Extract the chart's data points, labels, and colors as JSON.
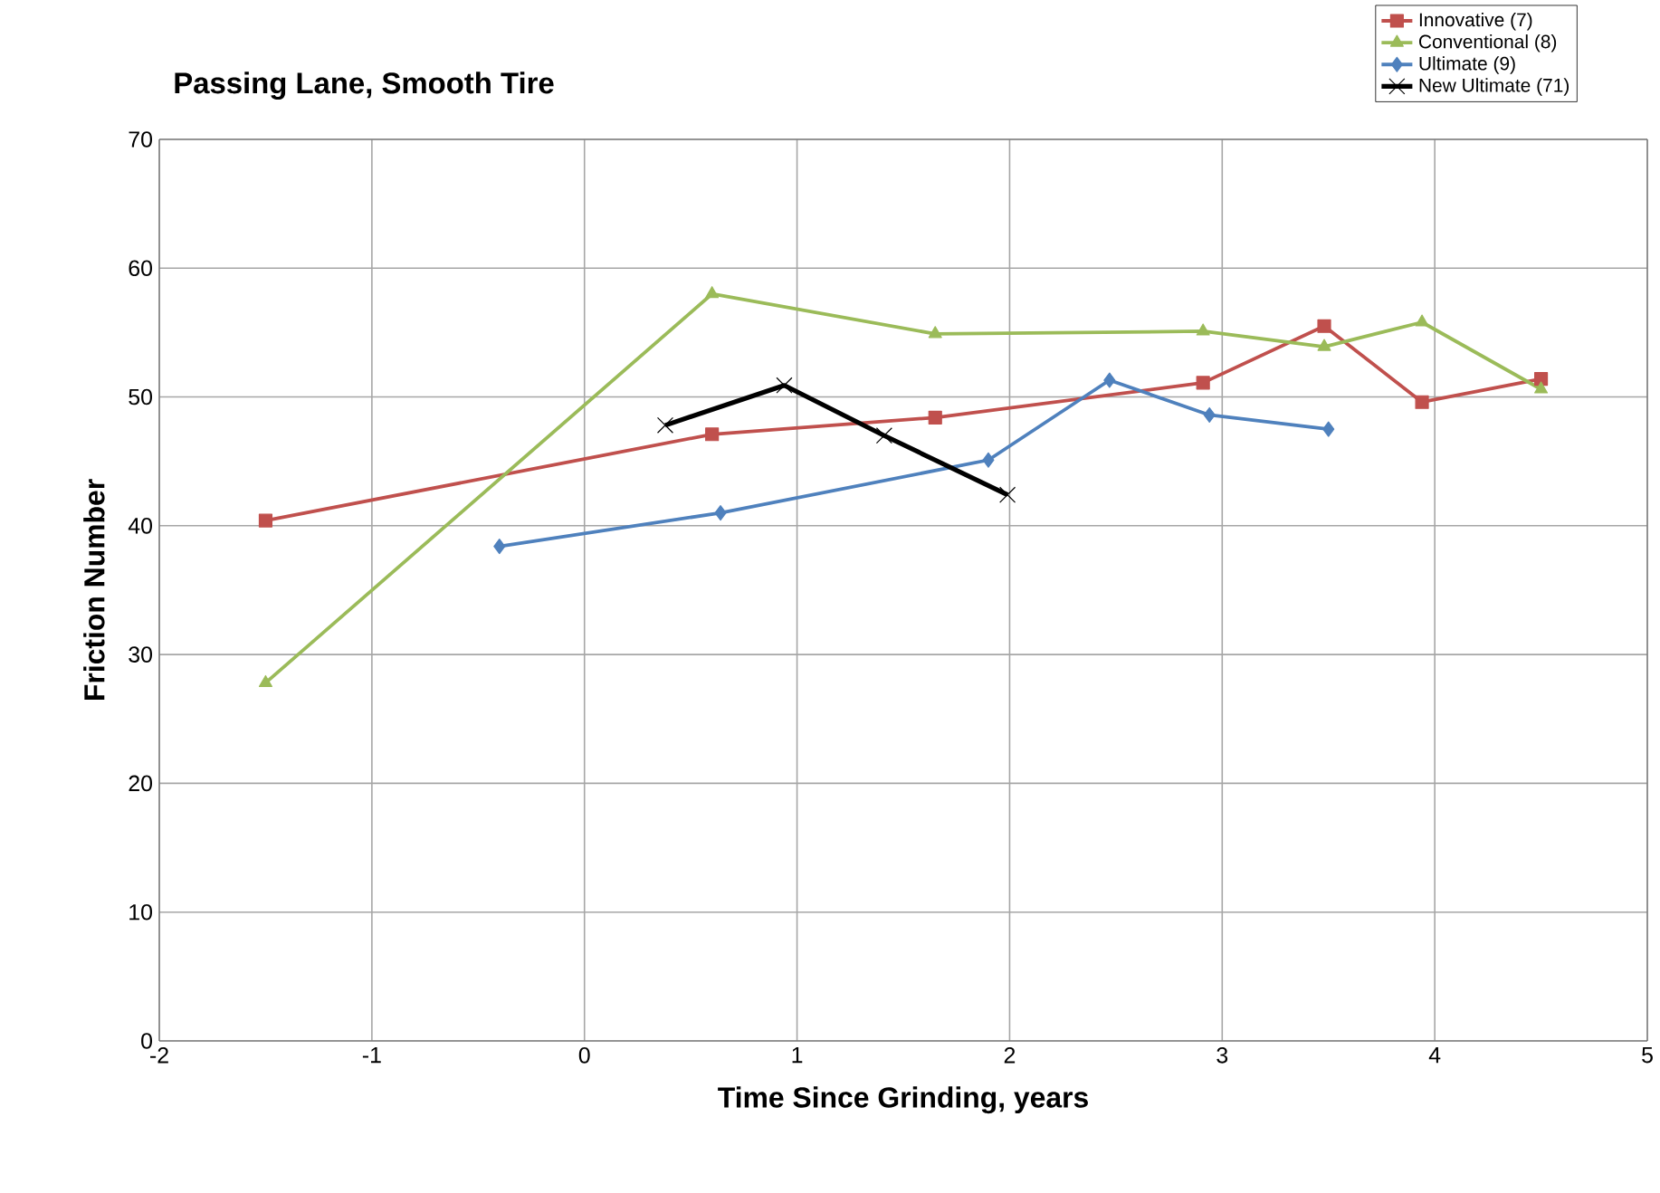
{
  "chart_data": {
    "type": "line",
    "title": "Passing Lane, Smooth Tire",
    "xlabel": "Time Since Grinding, years",
    "ylabel": "Friction Number",
    "xlim": [
      -2,
      5
    ],
    "xticks": [
      -2,
      -1,
      0,
      1,
      2,
      3,
      4,
      5
    ],
    "ylim": [
      0,
      70
    ],
    "yticks": [
      0,
      10,
      20,
      30,
      40,
      50,
      60,
      70
    ],
    "grid": true,
    "legend": "top right",
    "line_style": "solid",
    "series": [
      {
        "name": "Innovative (7)",
        "color": "#c0504d",
        "marker": "square",
        "x": [
          -1.5,
          0.6,
          1.65,
          2.91,
          3.48,
          3.94,
          4.5
        ],
        "values": [
          40.4,
          47.1,
          48.4,
          51.1,
          55.5,
          49.6,
          51.4
        ]
      },
      {
        "name": "Conventional (8)",
        "color": "#9bbb59",
        "marker": "triangle",
        "x": [
          -1.5,
          0.6,
          1.65,
          2.91,
          3.48,
          3.94,
          4.5
        ],
        "values": [
          27.8,
          58.0,
          54.9,
          55.1,
          53.9,
          55.8,
          50.6
        ]
      },
      {
        "name": "Ultimate (9)",
        "color": "#4f81bd",
        "marker": "diamond",
        "x": [
          -0.4,
          0.64,
          1.9,
          2.47,
          2.94,
          3.5
        ],
        "values": [
          38.4,
          41.0,
          45.1,
          51.3,
          48.6,
          47.5
        ]
      },
      {
        "name": "New Ultimate (71)",
        "color": "#000000",
        "marker": "cross",
        "x": [
          0.38,
          0.94,
          1.41,
          1.99
        ],
        "values": [
          47.8,
          50.9,
          47.0,
          42.4
        ]
      }
    ]
  }
}
